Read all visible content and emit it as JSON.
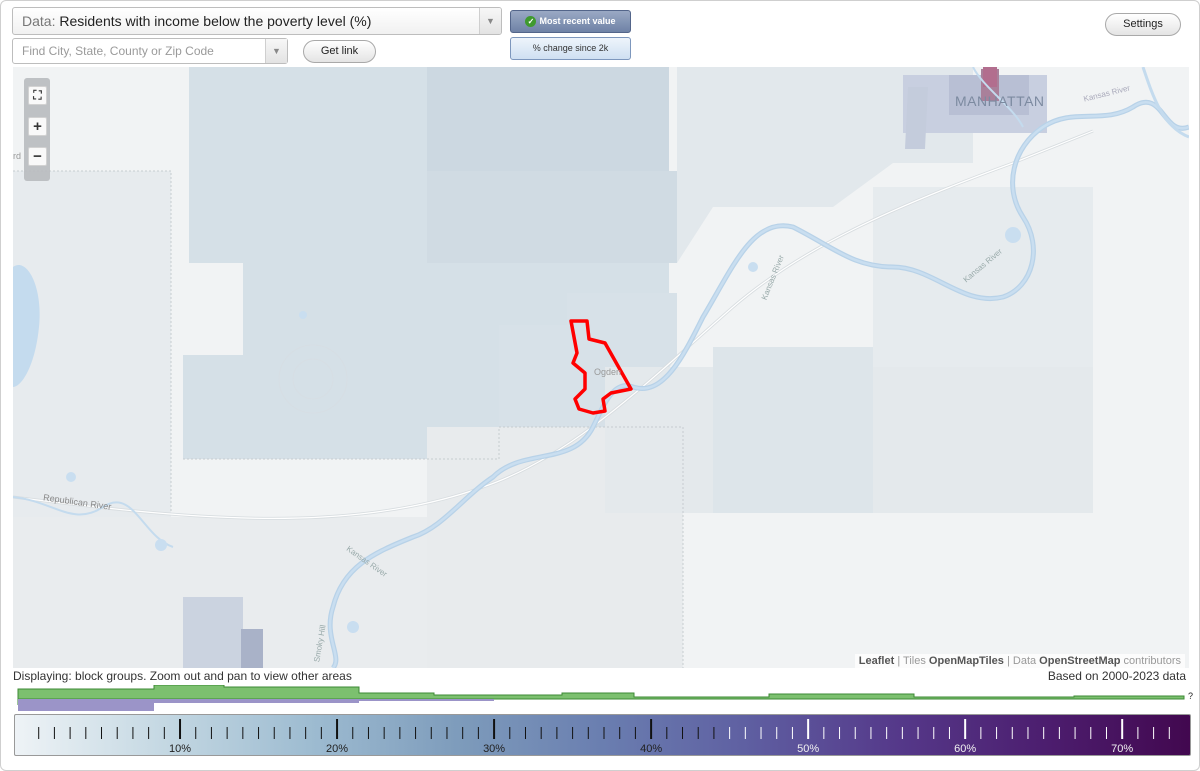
{
  "header": {
    "data_prefix": "Data:",
    "data_value": "Residents with income below the poverty level (%)",
    "search_placeholder": "Find City, State, County or Zip Code",
    "get_link_label": "Get link",
    "settings_label": "Settings",
    "mode_recent_label": "Most recent value",
    "mode_change_label": "% change since 2k"
  },
  "map": {
    "labels": {
      "manhattan": "MANHATTAN",
      "ogden": "Ogden",
      "republican_river": "Republican River",
      "kansas_river_1": "Kansas River",
      "kansas_river_2": "Kansas River",
      "kansas_river_3": "Kansas River",
      "kansas_river_top": "Kansas River",
      "smoky_hill": "Smoky Hill",
      "edge_label": "rd"
    },
    "zoom": {
      "fullscreen_icon": "fullscreen-icon",
      "zoom_in": "+",
      "zoom_out": "−"
    },
    "attribution": {
      "leaflet": "Leaflet",
      "sep1": " | Tiles ",
      "tiles": "OpenMapTiles",
      "sep2": " | Data ",
      "osm": "OpenStreetMap",
      "contributors": " contributors"
    }
  },
  "footer": {
    "display_note": "Displaying: block groups. Zoom out and pan to view other areas",
    "based_note": "Based on 2000-2023 data",
    "unknown_marker": "?"
  },
  "legend": {
    "ticks": [
      "10%",
      "20%",
      "30%",
      "40%",
      "50%",
      "60%",
      "70%"
    ],
    "tick_values": [
      10,
      20,
      30,
      40,
      50,
      60,
      70
    ],
    "range": [
      0,
      74
    ]
  }
}
